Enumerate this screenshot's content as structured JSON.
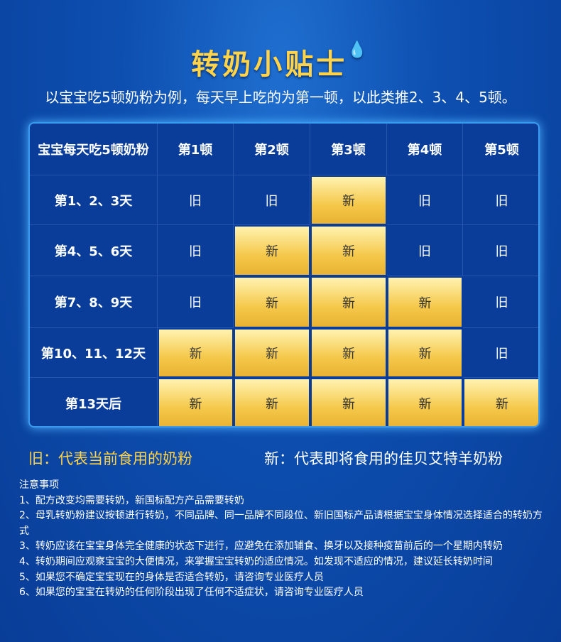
{
  "title": "转奶小贴士",
  "subtitle": "以宝宝吃5顿奶粉为例，每天早上吃的为第一顿，以此类推2、3、4、5顿。",
  "table": {
    "headers": [
      "宝宝每天吃5顿奶粉",
      "第1顿",
      "第2顿",
      "第3顿",
      "第4顿",
      "第5顿"
    ],
    "rows": [
      {
        "label": "第1、2、3天",
        "cells": [
          "旧",
          "旧",
          "新",
          "旧",
          "旧"
        ]
      },
      {
        "label": "第4、5、6天",
        "cells": [
          "旧",
          "新",
          "新",
          "旧",
          "旧"
        ]
      },
      {
        "label": "第7、8、9天",
        "cells": [
          "旧",
          "新",
          "新",
          "新",
          "旧"
        ]
      },
      {
        "label": "第10、11、12天",
        "cells": [
          "新",
          "新",
          "新",
          "新",
          "旧"
        ]
      },
      {
        "label": "第13天后",
        "cells": [
          "新",
          "新",
          "新",
          "新",
          "新"
        ]
      }
    ]
  },
  "legend": {
    "old": "旧：代表当前食用的奶粉",
    "new": "新：代表即将食用的佳贝艾特羊奶粉"
  },
  "notes": {
    "title": "注意事项",
    "items": [
      "1、配方改变均需要转奶，新国标配方产品需要转奶",
      "2、母乳转奶粉建议按顿进行转奶，不同品牌、同一品牌不同段位、新旧国标产品请根据宝宝身体情况选择适合的转奶方式",
      "3、转奶应该在宝宝身体完全健康的状态下进行，应避免在添加辅食、换牙以及接种疫苗前后的一个星期内转奶",
      "4、转奶期间应观察宝宝的大便情况，来掌握宝宝转奶的适应情况。如发现不适应的情况，建议延长转奶时间",
      "5、如果您不确定宝宝现在的身体是否适合转奶，请咨询专业医疗人员",
      "6、如果您的宝宝在转奶的任何阶段出现了任何不适症状，请咨询专业医疗人员"
    ]
  },
  "colors": {
    "accent": "#ffd34a",
    "background": "#0d4fb0",
    "new_cell": "#f5c84a"
  }
}
